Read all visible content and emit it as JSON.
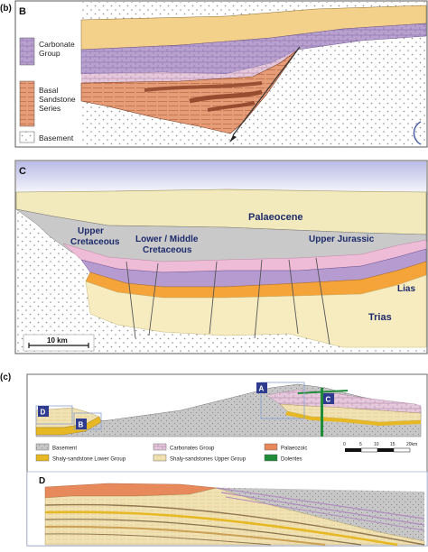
{
  "colors": {
    "background": "#ffffff",
    "panel_border": "#5a5a5a",
    "basement_fill": "#ffffff",
    "basement_dots": "#8a8a8a",
    "carbonate": "#b9a1cf",
    "carbonate_dark": "#8f75b6",
    "basal_sandstone": "#e79c78",
    "basal_sandstone_dark": "#a4532f",
    "cover_yellow": "#f3d18a",
    "palaeocene": "#f2eabc",
    "cretaceous_grey": "#c9c9c9",
    "upper_jurassic": "#b59bd0",
    "lias": "#f5a43a",
    "trias": "#f7ebc0",
    "pink_layer": "#efbcd7",
    "sky": "#cfd0ee",
    "shaly_lower": "#e6b823",
    "shaly_upper": "#f1e2b3",
    "palaeozoic": "#e7895a",
    "dolerites": "#1f8c3a",
    "marker_blue": "#2f3b8f"
  },
  "panel_b": {
    "label": "(b)",
    "letter": "B",
    "legend": [
      {
        "name": "Carbonate\nGroup",
        "lines": [
          "Carbonate",
          "Group"
        ],
        "icon": "carbonate-swatch"
      },
      {
        "name": "Basal\nSandstone\nSeries",
        "lines": [
          "Basal",
          "Sandstone",
          "Series"
        ],
        "icon": "basal-sandstone-swatch"
      },
      {
        "name": "Basement",
        "lines": [
          "Basement"
        ],
        "icon": "basement-swatch"
      }
    ]
  },
  "panel_c": {
    "letter": "C",
    "labels": {
      "palaeocene": "Palaeocene",
      "upper_cretaceous": [
        "Upper",
        "Cretaceous"
      ],
      "lower_middle_cretaceous": [
        "Lower / Middle",
        "Cretaceous"
      ],
      "upper_jurassic": "Upper Jurassic",
      "lias": "Lias",
      "trias": "Trias"
    },
    "scale": "10 km"
  },
  "panel_c2": {
    "label": "(c)",
    "markers": [
      "A",
      "B",
      "C",
      "D"
    ],
    "legend": [
      {
        "name": "Basement",
        "icon": "basement-swatch"
      },
      {
        "name": "Carbonates Group",
        "icon": "carbonates-group-swatch"
      },
      {
        "name": "Palaeozoic",
        "icon": "palaeozoic-swatch"
      },
      {
        "name": "Shaly-sandstone Lower Group",
        "icon": "shaly-lower-swatch"
      },
      {
        "name": "Shaly-sandstones Upper Group",
        "icon": "shaly-upper-swatch"
      },
      {
        "name": "Dolerites",
        "icon": "dolerites-swatch"
      }
    ],
    "scale_ticks": [
      "0",
      "5",
      "10",
      "15",
      "20km"
    ],
    "panel_d_letter": "D"
  }
}
